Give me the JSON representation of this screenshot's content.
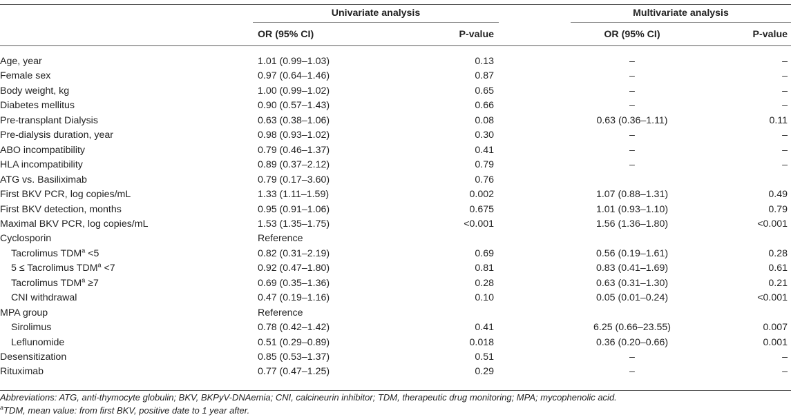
{
  "header": {
    "univariate": "Univariate analysis",
    "multivariate": "Multivariate analysis",
    "or_ci": "OR (95% CI)",
    "pvalue": "P-value"
  },
  "rows": [
    {
      "label": "Age, year",
      "indent": false,
      "u_or": "1.01 (0.99–1.03)",
      "u_p": "0.13",
      "m_or": "–",
      "m_p": "–"
    },
    {
      "label": "Female sex",
      "indent": false,
      "u_or": "0.97 (0.64–1.46)",
      "u_p": "0.87",
      "m_or": "–",
      "m_p": "–"
    },
    {
      "label": "Body weight, kg",
      "indent": false,
      "u_or": "1.00 (0.99–1.02)",
      "u_p": "0.65",
      "m_or": "–",
      "m_p": "–"
    },
    {
      "label": "Diabetes mellitus",
      "indent": false,
      "u_or": "0.90 (0.57–1.43)",
      "u_p": "0.66",
      "m_or": "–",
      "m_p": "–"
    },
    {
      "label": "Pre-transplant Dialysis",
      "indent": false,
      "u_or": "0.63 (0.38–1.06)",
      "u_p": "0.08",
      "m_or": "0.63 (0.36–1.11)",
      "m_p": "0.11"
    },
    {
      "label": "Pre-dialysis duration, year",
      "indent": false,
      "u_or": "0.98 (0.93–1.02)",
      "u_p": "0.30",
      "m_or": "–",
      "m_p": "–"
    },
    {
      "label": "ABO incompatibility",
      "indent": false,
      "u_or": "0.79 (0.46–1.37)",
      "u_p": "0.41",
      "m_or": "–",
      "m_p": "–"
    },
    {
      "label": "HLA incompatibility",
      "indent": false,
      "u_or": "0.89 (0.37–2.12)",
      "u_p": "0.79",
      "m_or": "–",
      "m_p": "–"
    },
    {
      "label": "ATG vs. Basiliximab",
      "indent": false,
      "u_or": "0.79 (0.17–3.60)",
      "u_p": "0.76",
      "m_or": "",
      "m_p": ""
    },
    {
      "label": "First BKV PCR, log copies/mL",
      "indent": false,
      "u_or": "1.33 (1.11–1.59)",
      "u_p": "0.002",
      "m_or": "1.07 (0.88–1.31)",
      "m_p": "0.49"
    },
    {
      "label": "First BKV detection, months",
      "indent": false,
      "u_or": "0.95 (0.91–1.06)",
      "u_p": "0.675",
      "m_or": "1.01 (0.93–1.10)",
      "m_p": "0.79"
    },
    {
      "label": "Maximal BKV PCR, log copies/mL",
      "indent": false,
      "u_or": "1.53 (1.35–1.75)",
      "u_p": "<0.001",
      "m_or": "1.56 (1.36–1.80)",
      "m_p": "<0.001"
    },
    {
      "label": "Cyclosporin",
      "indent": false,
      "u_or": "Reference",
      "u_p": "",
      "m_or": "",
      "m_p": ""
    },
    {
      "label_pre": "Tacrolimus TDM",
      "sup": "a",
      "label_post": " <5",
      "indent": true,
      "u_or": "0.82 (0.31–2.19)",
      "u_p": "0.69",
      "m_or": "0.56 (0.19–1.61)",
      "m_p": "0.28"
    },
    {
      "label_pre": "5 ≤ Tacrolimus TDM",
      "sup": "a",
      "label_post": " <7",
      "indent": true,
      "u_or": "0.92 (0.47–1.80)",
      "u_p": "0.81",
      "m_or": "0.83 (0.41–1.69)",
      "m_p": "0.61"
    },
    {
      "label_pre": "Tacrolimus TDM",
      "sup": "a",
      "label_post": " ≥7",
      "indent": true,
      "u_or": "0.69 (0.35–1.36)",
      "u_p": "0.28",
      "m_or": "0.63 (0.31–1.30)",
      "m_p": "0.21"
    },
    {
      "label": "CNI withdrawal",
      "indent": true,
      "u_or": "0.47 (0.19–1.16)",
      "u_p": "0.10",
      "m_or": "0.05 (0.01–0.24)",
      "m_p": "<0.001"
    },
    {
      "label": "MPA group",
      "indent": false,
      "u_or": "Reference",
      "u_p": "",
      "m_or": "",
      "m_p": ""
    },
    {
      "label": "Sirolimus",
      "indent": true,
      "u_or": "0.78 (0.42–1.42)",
      "u_p": "0.41",
      "m_or": "6.25 (0.66–23.55)",
      "m_p": "0.007"
    },
    {
      "label": "Leflunomide",
      "indent": true,
      "u_or": "0.51 (0.29–0.89)",
      "u_p": "0.018",
      "m_or": "0.36 (0.20–0.66)",
      "m_p": "0.001"
    },
    {
      "label": "Desensitization",
      "indent": false,
      "u_or": "0.85 (0.53–1.37)",
      "u_p": "0.51",
      "m_or": "–",
      "m_p": "–"
    },
    {
      "label": "Rituximab",
      "indent": false,
      "u_or": "0.77 (0.47–1.25)",
      "u_p": "0.29",
      "m_or": "–",
      "m_p": "–"
    }
  ],
  "footnotes": {
    "abbreviations": "Abbreviations: ATG, anti-thymocyte globulin; BKV, BKPyV-DNAemia; CNI, calcineurin inhibitor; TDM, therapeutic drug monitoring; MPA; mycophenolic acid.",
    "tdm_sup": "a",
    "tdm_note": "TDM, mean value: from first BKV, positive date to 1 year after."
  }
}
